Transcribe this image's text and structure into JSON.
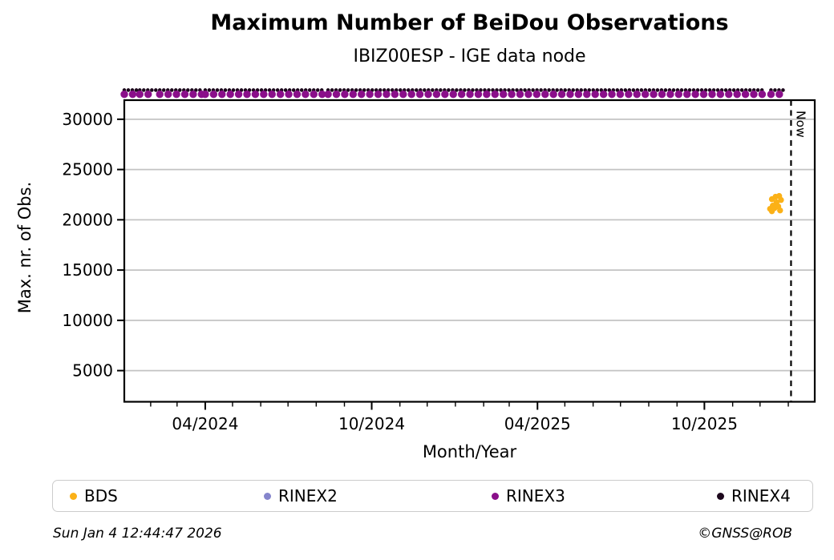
{
  "chart_data": {
    "type": "scatter",
    "title": "Maximum Number of BeiDou Observations",
    "subtitle": "IBIZ00ESP - IGE data node",
    "xlabel": "Month/Year",
    "ylabel": "Max. nr. of Obs.",
    "grid": "horizontal-only",
    "x_axis": {
      "start": "2024-01-03",
      "end": "2026-01-30",
      "major_ticks": [
        {
          "label": "04/2024",
          "date": "2024-04-01"
        },
        {
          "label": "10/2024",
          "date": "2024-10-01"
        },
        {
          "label": "04/2025",
          "date": "2025-04-01"
        },
        {
          "label": "10/2025",
          "date": "2025-10-01"
        }
      ],
      "minor_tick_interval": "1 month"
    },
    "y_axis": {
      "min": 1900,
      "max": 31900,
      "ticks": [
        5000,
        10000,
        15000,
        20000,
        25000,
        30000
      ]
    },
    "now": {
      "label": "Now",
      "date": "2026-01-04"
    },
    "colors": {
      "grid": "#C3C3C3",
      "frame": "#000000"
    },
    "series": [
      {
        "name": "BDS",
        "color": "#FBB117",
        "marker": "dot",
        "points": [
          [
            "2025-12-12",
            21090
          ],
          [
            "2025-12-14",
            22050
          ],
          [
            "2025-12-14",
            20850
          ],
          [
            "2025-12-15",
            21410
          ],
          [
            "2025-12-17",
            21170
          ],
          [
            "2025-12-18",
            22290
          ],
          [
            "2025-12-19",
            21730
          ],
          [
            "2025-12-21",
            21330
          ],
          [
            "2025-12-22",
            22370
          ],
          [
            "2025-12-23",
            20930
          ],
          [
            "2025-12-24",
            21970
          ]
        ]
      },
      {
        "name": "RINEX2",
        "color": "#8585CC",
        "marker": "dot",
        "points": []
      },
      {
        "name": "RINEX3",
        "color": "#8A0F8A",
        "marker": "dot",
        "value": 32480,
        "segments": [
          [
            "2024-01-03",
            "2024-01-17"
          ],
          [
            "2024-01-20",
            "2024-02-07"
          ],
          [
            "2024-02-11",
            "2024-03-28"
          ],
          [
            "2024-04-01",
            "2024-08-11"
          ],
          [
            "2024-08-14",
            "2025-12-05"
          ],
          [
            "2025-12-13",
            "2025-12-27"
          ]
        ]
      },
      {
        "name": "RINEX4",
        "color": "#1D081D",
        "marker": "dot",
        "value": 32900,
        "segments": [
          [
            "2024-01-03",
            "2024-01-17"
          ],
          [
            "2024-01-20",
            "2024-02-07"
          ],
          [
            "2024-02-11",
            "2024-03-28"
          ],
          [
            "2024-04-01",
            "2024-08-11"
          ],
          [
            "2024-08-14",
            "2025-12-05"
          ],
          [
            "2025-12-13",
            "2025-12-27"
          ]
        ]
      }
    ]
  },
  "legend": {
    "items": [
      {
        "label": "BDS",
        "color": "#FBB117"
      },
      {
        "label": "RINEX2",
        "color": "#8585CC"
      },
      {
        "label": "RINEX3",
        "color": "#8A0F8A"
      },
      {
        "label": "RINEX4",
        "color": "#1D081D"
      }
    ]
  },
  "footer": {
    "timestamp": "Sun Jan  4 12:44:47 2026",
    "copyright": "©GNSS@ROB"
  }
}
